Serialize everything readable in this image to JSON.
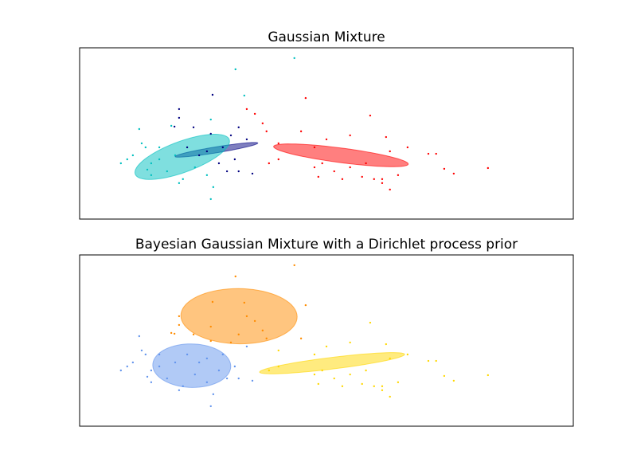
{
  "chart_data": [
    {
      "type": "scatter",
      "title": "Gaussian Mixture",
      "xlim": [
        -9,
        5
      ],
      "ylim": [
        -3,
        6
      ],
      "series": [
        {
          "color": "#000080",
          "x": [
            -6.18,
            -5.23,
            -6.31,
            -5.77,
            -5.28,
            -4.71,
            -4.49,
            -4.26,
            -4.6,
            -4.82,
            -4.49,
            -4.1,
            -5.05,
            -5.61,
            -5.95,
            -5.39,
            -4.94,
            -6.18
          ],
          "values": [
            2.78,
            3.53,
            1.86,
            1.82,
            1.48,
            1.4,
            1.82,
            1.19,
            0.14,
            -0.49,
            -0.49,
            -0.61,
            -0.07,
            0.35,
            0.77,
            0.56,
            0.77,
            2.32
          ],
          "ellipse": {
            "center": [
              -5.12,
              0.64
            ],
            "width": 2.45,
            "height": 0.3,
            "angle": 17
          }
        },
        {
          "color": "#00bfbf",
          "x": [
            -2.91,
            -4.58,
            -4.33,
            -5.28,
            -7.31,
            -6.4,
            -7.24,
            -6.74,
            -7.49,
            -7.83,
            -7.08,
            -6.97,
            -6.52,
            -6.07,
            -6.18,
            -5.39,
            -5.21,
            -5.28,
            -5.73,
            -6.74,
            -6.29,
            -6.97,
            -7.65,
            -7.13
          ],
          "values": [
            5.46,
            4.87,
            3.49,
            2.23,
            1.73,
            1.9,
            0.98,
            0.77,
            0.35,
            -0.07,
            -0.4,
            -0.69,
            -0.49,
            -0.9,
            -1.11,
            -0.69,
            -1.32,
            -1.95,
            -0.28,
            0.14,
            0.35,
            -0.07,
            0.14,
            0.77
          ],
          "ellipse": {
            "center": [
              -6.09,
              0.27
            ],
            "width": 3.3,
            "height": 1.4,
            "angle": 40
          }
        },
        {
          "color": "#ff0000",
          "x": [
            -2.59,
            -4.26,
            -4.03,
            -3.81,
            -3.7,
            -3.36,
            -3.63,
            -3.36,
            -2.72,
            -2.34,
            -2.0,
            -1.33,
            -0.76,
            -0.31,
            -0.2,
            0.3,
            0.89,
            1.11,
            1.34,
            1.61,
            2.58,
            -0.42,
            -0.65,
            -0.99,
            -1.55,
            -2.23,
            -2.34,
            -2.12,
            -1.78,
            -0.2,
            -0.42,
            0.03,
            -1.33,
            -0.88
          ],
          "values": [
            3.36,
            2.78,
            2.53,
            2.03,
            1.61,
            0.98,
            -0.07,
            0.14,
            1.61,
            0.77,
            1.19,
            1.4,
            2.44,
            1.31,
            0.56,
            0.77,
            0.43,
            0.43,
            -0.36,
            -0.61,
            -0.32,
            -0.9,
            -0.9,
            -0.78,
            -0.9,
            -0.78,
            -0.28,
            -0.07,
            -0.49,
            -1.45,
            -1.11,
            -0.69,
            -0.28,
            -0.07
          ],
          "ellipse": {
            "center": [
              -1.59,
              0.35
            ],
            "width": 3.93,
            "height": 0.75,
            "angle": -14
          }
        }
      ]
    },
    {
      "type": "scatter",
      "title": "Bayesian Gaussian Mixture with a Dirichlet process prior",
      "xlim": [
        -9,
        5
      ],
      "ylim": [
        -3,
        6
      ],
      "series": [
        {
          "color": "#ff8c00",
          "x": [
            -2.91,
            -4.58,
            -4.33,
            -5.28,
            -6.4,
            -6.18,
            -5.23,
            -6.31,
            -5.77,
            -5.28,
            -4.71,
            -4.49,
            -6.18,
            -2.59,
            -4.26,
            -4.03,
            -3.81,
            -3.7,
            -2.72
          ],
          "values": [
            5.46,
            4.87,
            3.49,
            2.23,
            1.9,
            2.78,
            3.53,
            1.86,
            1.82,
            1.48,
            1.4,
            1.82,
            2.32,
            3.36,
            2.78,
            2.53,
            2.03,
            1.61,
            1.61
          ],
          "ellipse": {
            "center": [
              -4.48,
              2.78
            ],
            "width": 3.3,
            "height": 2.9,
            "angle": -5
          }
        },
        {
          "color": "#6495ed",
          "x": [
            -7.31,
            -7.24,
            -6.74,
            -7.49,
            -7.83,
            -7.08,
            -6.97,
            -6.52,
            -6.07,
            -6.18,
            -5.39,
            -5.21,
            -5.28,
            -5.73,
            -6.74,
            -6.29,
            -6.97,
            -7.65,
            -7.13,
            -4.26,
            -4.6,
            -4.82,
            -4.49,
            -4.1,
            -5.05,
            -5.61,
            -5.95,
            -5.39,
            -4.94
          ],
          "values": [
            1.73,
            0.98,
            0.77,
            0.35,
            -0.07,
            -0.4,
            -0.69,
            -0.49,
            -0.9,
            -1.11,
            -0.69,
            -1.32,
            -1.95,
            -0.28,
            0.14,
            0.35,
            -0.07,
            0.14,
            0.77,
            1.19,
            0.14,
            -0.49,
            -0.49,
            -0.61,
            -0.07,
            0.35,
            0.77,
            0.56,
            0.77
          ],
          "ellipse": {
            "center": [
              -5.82,
              0.18
            ],
            "width": 2.2,
            "height": 2.3,
            "angle": 20
          }
        },
        {
          "color": "#ffd700",
          "x": [
            -3.36,
            -3.63,
            -3.36,
            -2.34,
            -2.0,
            -1.33,
            -0.76,
            -0.31,
            -0.2,
            0.3,
            0.89,
            1.11,
            1.34,
            1.61,
            2.58,
            -0.42,
            -0.65,
            -0.99,
            -1.55,
            -2.23,
            -2.34,
            -2.12,
            -1.78,
            -0.2,
            -0.42,
            0.03,
            -1.33,
            -0.88
          ],
          "values": [
            0.98,
            -0.07,
            0.14,
            0.77,
            1.19,
            1.4,
            2.44,
            1.31,
            0.56,
            0.77,
            0.43,
            0.43,
            -0.36,
            -0.61,
            -0.32,
            -0.9,
            -0.9,
            -0.78,
            -0.9,
            -0.78,
            -0.28,
            -0.07,
            -0.49,
            -1.45,
            -1.11,
            -0.69,
            -0.28,
            -0.07
          ],
          "ellipse": {
            "center": [
              -1.84,
              0.31
            ],
            "width": 4.22,
            "height": 0.6,
            "angle": 13
          }
        }
      ]
    }
  ]
}
